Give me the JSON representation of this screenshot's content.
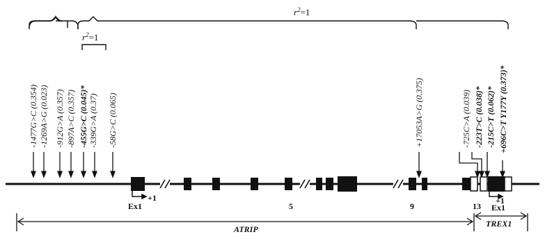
{
  "linkage": {
    "r2_top": "r",
    "r2_top_sup": "2",
    "r2_top_val": "=1",
    "r2_small": "r",
    "r2_small_sup": "2",
    "r2_small_val": "=1"
  },
  "snps": [
    {
      "label": "-1477G>C (0.354)",
      "bold": false
    },
    {
      "label": "-1269A>G (0.023)",
      "bold": false
    },
    {
      "label": "-912G>A (0.357)",
      "bold": false
    },
    {
      "label": "-897A>C (0.357)",
      "bold": false
    },
    {
      "label": "-455G>C (0.045)*",
      "bold": true
    },
    {
      "label": "-339G>A (0.37)",
      "bold": false
    },
    {
      "label": "-58G>C (0.065)",
      "bold": false
    },
    {
      "label": "+17053A>G (0.375)",
      "bold": false
    },
    {
      "label": "-725C>A (0.039)",
      "bold": false
    },
    {
      "label": "-223T>C (0.038)*",
      "bold": true
    },
    {
      "label": "-215C>T (0.062)*",
      "bold": true
    },
    {
      "label": "+696C>T Y177Y (0.373)*",
      "bold": true
    }
  ],
  "exon_labels": {
    "atrip_ex1": "Ex1",
    "atrip_tss": "+1",
    "exon5": "5",
    "exon9": "9",
    "exon13": "13",
    "trex1_ex1": "Ex1",
    "trex1_tss": "+1"
  },
  "genes": {
    "atrip": "ATRIP",
    "trex1": "TREX1"
  }
}
